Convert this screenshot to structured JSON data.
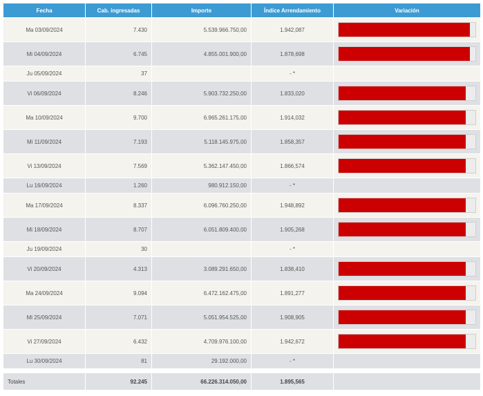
{
  "headers": {
    "fecha": "Fecha",
    "cab": "Cab. ingresadas",
    "importe": "Importe",
    "indice": "Índice Arrendamiento",
    "variacion": "Variación"
  },
  "rows": [
    {
      "fecha": "Ma 03/09/2024",
      "cab": "7.430",
      "importe": "5.539.966.750,00",
      "indice": "1.942,087",
      "variacion_level": 0.96
    },
    {
      "fecha": "Mi 04/09/2024",
      "cab": "6.745",
      "importe": "4.855.001.900,00",
      "indice": "1.878,698",
      "variacion_level": 0.96
    },
    {
      "fecha": "Ju 05/09/2024",
      "cab": "37",
      "importe": "",
      "indice": "- *",
      "variacion_level": null
    },
    {
      "fecha": "Vi 06/09/2024",
      "cab": "8.246",
      "importe": "5.903.732.250,00",
      "indice": "1.833,020",
      "variacion_level": 0.93
    },
    {
      "fecha": "Ma 10/09/2024",
      "cab": "9.700",
      "importe": "6.965.261.175,00",
      "indice": "1.914,032",
      "variacion_level": 0.93
    },
    {
      "fecha": "Mi 11/09/2024",
      "cab": "7.193",
      "importe": "5.118.145.975,00",
      "indice": "1.858,357",
      "variacion_level": 0.93
    },
    {
      "fecha": "Vi 13/09/2024",
      "cab": "7.569",
      "importe": "5.362.147.450,00",
      "indice": "1.866,574",
      "variacion_level": 0.93
    },
    {
      "fecha": "Lu 16/09/2024",
      "cab": "1.260",
      "importe": "980.912.150,00",
      "indice": "- *",
      "variacion_level": null
    },
    {
      "fecha": "Ma 17/09/2024",
      "cab": "8.337",
      "importe": "6.096.760.250,00",
      "indice": "1.948,892",
      "variacion_level": 0.93
    },
    {
      "fecha": "Mi 18/09/2024",
      "cab": "8.707",
      "importe": "6.051.809.400,00",
      "indice": "1.905,268",
      "variacion_level": 0.93
    },
    {
      "fecha": "Ju 19/09/2024",
      "cab": "30",
      "importe": "",
      "indice": "- *",
      "variacion_level": null
    },
    {
      "fecha": "Vi 20/09/2024",
      "cab": "4.313",
      "importe": "3.089.291.650,00",
      "indice": "1.838,410",
      "variacion_level": 0.93
    },
    {
      "fecha": "Ma 24/09/2024",
      "cab": "9.094",
      "importe": "6.472.162.475,00",
      "indice": "1.891,277",
      "variacion_level": 0.93
    },
    {
      "fecha": "Mi 25/09/2024",
      "cab": "7.071",
      "importe": "5.051.954.525,00",
      "indice": "1.908,905",
      "variacion_level": 0.93
    },
    {
      "fecha": "Vi 27/09/2024",
      "cab": "6.432",
      "importe": "4.709.976.100,00",
      "indice": "1.942,672",
      "variacion_level": 0.93
    },
    {
      "fecha": "Lu 30/09/2024",
      "cab": "81",
      "importe": "29.192.000,00",
      "indice": "- *",
      "variacion_level": null
    }
  ],
  "totals": {
    "label": "Totales",
    "cab": "92.245",
    "importe": "66.226.314.050,00",
    "indice": "1.895,565"
  },
  "colors": {
    "header_bg": "#3d9bd3",
    "bar_fill": "#cc0000",
    "row_odd": "#f4f3ee",
    "row_even": "#dee0e4"
  }
}
